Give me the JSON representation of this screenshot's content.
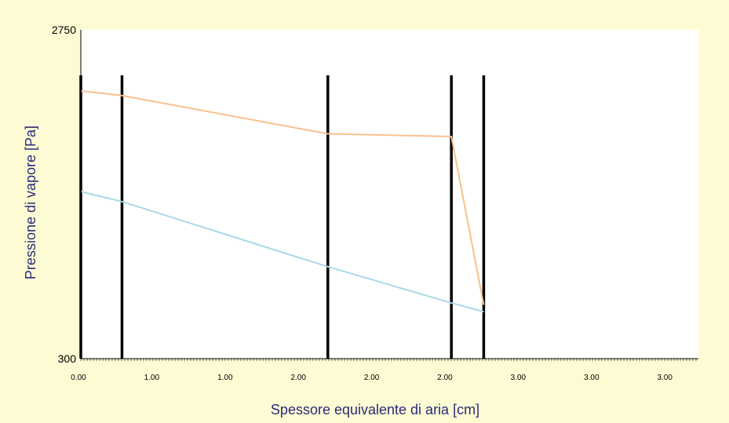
{
  "chart_data": {
    "type": "line",
    "xlabel": "Spessore equivalente di aria [cm]",
    "ylabel": "Pressione di vapore [Pa]",
    "ylim": [
      300,
      2750
    ],
    "xlim": [
      0,
      4.2
    ],
    "y_tick_labels": [
      "2750",
      "300"
    ],
    "x_tick_labels": [
      "0.00",
      "1.00",
      "1.00",
      "2.00",
      "2.00",
      "2.00",
      "3.00",
      "3.00",
      "3.00"
    ],
    "layer_boundaries": [
      0,
      0.28,
      1.68,
      2.52,
      2.74
    ],
    "series": [
      {
        "color": "#f8c18e",
        "x": [
          0,
          0.28,
          1.68,
          2.52,
          2.74
        ],
        "y": [
          2295,
          2260,
          1975,
          1955,
          700
        ]
      },
      {
        "color": "#a9d9e8",
        "x": [
          0,
          0.28,
          1.68,
          2.52,
          2.74
        ],
        "y": [
          1545,
          1470,
          985,
          715,
          650
        ]
      }
    ],
    "grid": false,
    "legend": "none"
  },
  "colors": {
    "background": "#fdfbd4",
    "plot_background": "#ffffff",
    "axis_title": "#2b2b7a",
    "boundary_lines": "#000000"
  }
}
